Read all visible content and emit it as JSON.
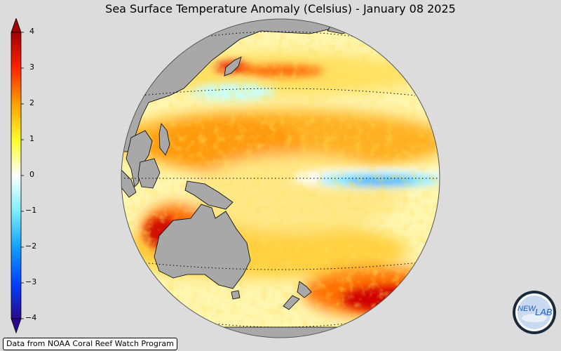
{
  "title": "Sea Surface Temperature Anomaly (Celsius) - January 08 2025",
  "colorbar": {
    "ticks": [
      "4",
      "3",
      "2",
      "1",
      "0",
      "−1",
      "−2",
      "−3",
      "−4"
    ],
    "range": [
      -4,
      4
    ],
    "colors": [
      "#2a0a8a",
      "#0050ff",
      "#18b8ff",
      "#c8ffff",
      "#ffffff",
      "#ffff40",
      "#ffb000",
      "#ff4000",
      "#aa0000"
    ]
  },
  "map": {
    "projection": "orthographic",
    "center": "Western Pacific",
    "ocean_color_neutral": "#ffffff",
    "land_color": "#a8a8a8",
    "gridlines": "dotted"
  },
  "credit": "Data from NOAA Coral Reef Watch Program",
  "logo": {
    "text_left": "NEW",
    "text_right": "LAB"
  }
}
